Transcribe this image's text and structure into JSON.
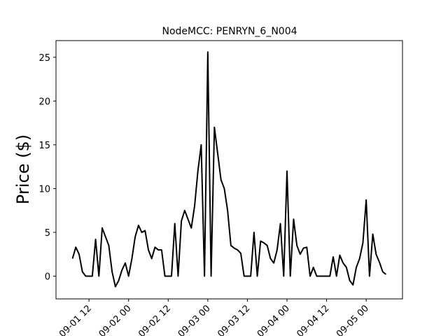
{
  "chart_data": {
    "type": "line",
    "title": "NodeMCC: PENRYN_6_N004",
    "y_label": "Price ($)",
    "x": [
      "09-01 07",
      "09-01 08",
      "09-01 09",
      "09-01 10",
      "09-01 11",
      "09-01 12",
      "09-01 13",
      "09-01 14",
      "09-01 15",
      "09-01 16",
      "09-01 17",
      "09-01 18",
      "09-01 19",
      "09-01 20",
      "09-01 21",
      "09-01 22",
      "09-01 23",
      "09-02 00",
      "09-02 01",
      "09-02 02",
      "09-02 03",
      "09-02 04",
      "09-02 05",
      "09-02 06",
      "09-02 07",
      "09-02 08",
      "09-02 09",
      "09-02 10",
      "09-02 11",
      "09-02 12",
      "09-02 13",
      "09-02 14",
      "09-02 15",
      "09-02 16",
      "09-02 17",
      "09-02 18",
      "09-02 19",
      "09-02 20",
      "09-02 21",
      "09-02 22",
      "09-02 23",
      "09-03 00",
      "09-03 01",
      "09-03 02",
      "09-03 03",
      "09-03 04",
      "09-03 05",
      "09-03 06",
      "09-03 07",
      "09-03 08",
      "09-03 09",
      "09-03 10",
      "09-03 11",
      "09-03 12",
      "09-03 13",
      "09-03 14",
      "09-03 15",
      "09-03 16",
      "09-03 17",
      "09-03 18",
      "09-03 19",
      "09-03 20",
      "09-03 21",
      "09-03 22",
      "09-03 23",
      "09-04 00",
      "09-04 01",
      "09-04 02",
      "09-04 03",
      "09-04 04",
      "09-04 05",
      "09-04 06",
      "09-04 07",
      "09-04 08",
      "09-04 09",
      "09-04 10",
      "09-04 11",
      "09-04 12",
      "09-04 13",
      "09-04 14",
      "09-04 15",
      "09-04 16",
      "09-04 17",
      "09-04 18",
      "09-04 19",
      "09-04 20",
      "09-04 21",
      "09-04 22",
      "09-04 23",
      "09-05 00",
      "09-05 01",
      "09-05 02",
      "09-05 03",
      "09-05 04",
      "09-05 05",
      "09-05 06"
    ],
    "series": [
      {
        "name": "Price",
        "color": "#000000",
        "values": [
          2,
          3.3,
          2.5,
          0.5,
          0,
          0,
          0,
          4.2,
          0,
          5.5,
          4.5,
          3.5,
          0.5,
          -1.2,
          -0.5,
          0.7,
          1.5,
          0,
          2,
          4.5,
          5.8,
          5,
          5.2,
          3,
          2,
          3.3,
          3,
          3,
          0,
          0,
          0,
          6,
          0,
          6.3,
          7.5,
          6.5,
          5.5,
          8,
          12,
          15,
          0,
          25.6,
          0,
          17,
          14,
          11,
          10,
          7.5,
          3.5,
          3.2,
          3,
          2.6,
          0,
          0,
          0,
          5,
          0,
          4,
          3.8,
          3.5,
          2,
          1.5,
          3,
          6,
          0,
          12,
          0,
          6.5,
          3.5,
          2.5,
          3.2,
          3.3,
          0,
          1,
          0,
          0,
          0,
          0,
          0,
          2.2,
          0,
          2.4,
          1.5,
          1,
          -0.5,
          -1,
          1,
          2,
          3.8,
          8.7,
          0,
          4.8,
          2.5,
          1.6,
          0.5,
          0.2
        ]
      }
    ],
    "xlim": [
      "09-01 02",
      "09-05 11"
    ],
    "xticks": [
      "09-01 12",
      "09-02 00",
      "09-02 12",
      "09-03 00",
      "09-03 12",
      "09-04 00",
      "09-04 12",
      "09-05 00"
    ],
    "ylim": [
      -2.6,
      26.9
    ],
    "yticks": [
      0,
      5,
      10,
      15,
      20,
      25
    ]
  }
}
